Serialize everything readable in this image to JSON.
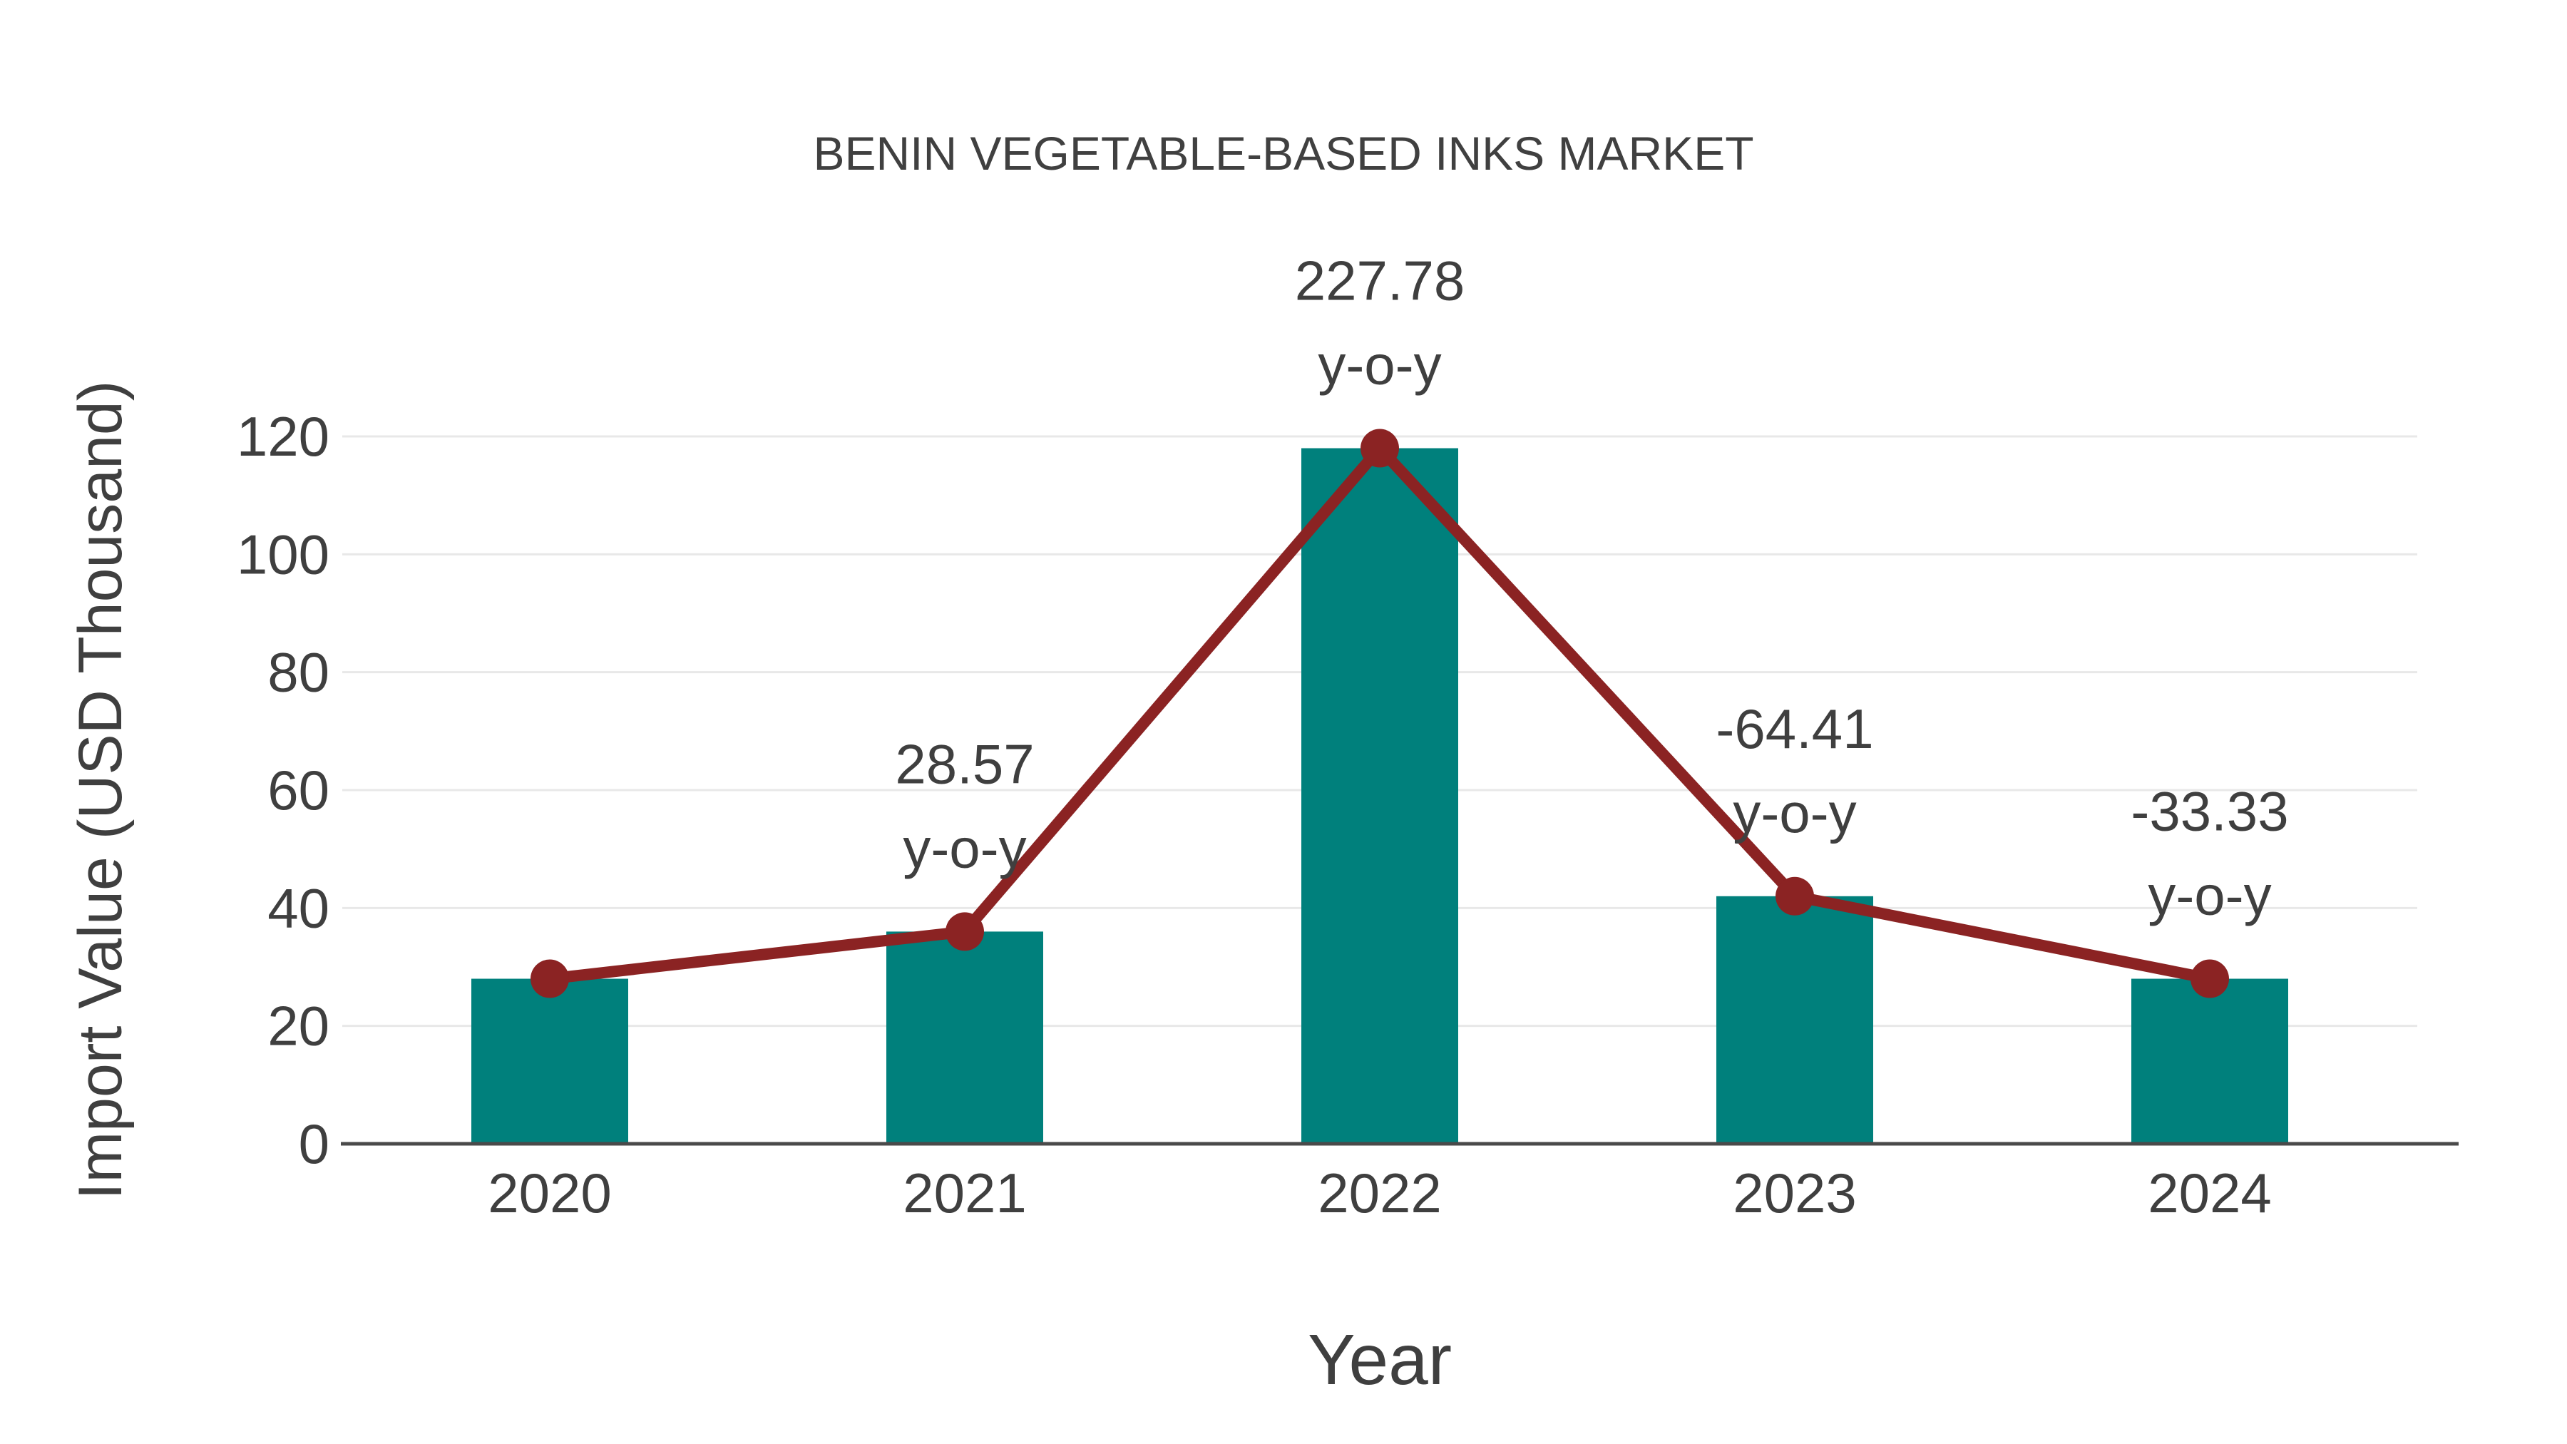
{
  "page": {
    "background": "#FFFFFF"
  },
  "chart_data": {
    "type": "bar",
    "title": "BENIN VEGETABLE-BASED INKS MARKET",
    "xlabel": "Year",
    "ylabel": "Import Value (USD Thousand)",
    "categories": [
      "2020",
      "2021",
      "2022",
      "2023",
      "2024"
    ],
    "series": [
      {
        "name": "Import Value (USD Thousand)",
        "type": "bar",
        "values": [
          28,
          36,
          118,
          42,
          28
        ],
        "color": "#00807C"
      },
      {
        "name": "y-o-y trend line",
        "type": "line",
        "values": [
          28,
          36,
          118,
          42,
          28
        ],
        "color": "#8B2323"
      }
    ],
    "annotations": [
      {
        "category": "2021",
        "value_text": "28.57",
        "suffix": "y-o-y"
      },
      {
        "category": "2022",
        "value_text": "227.78",
        "suffix": "y-o-y"
      },
      {
        "category": "2023",
        "value_text": "-64.41",
        "suffix": "y-o-y"
      },
      {
        "category": "2024",
        "value_text": "-33.33",
        "suffix": "y-o-y"
      }
    ],
    "yticks": [
      0,
      20,
      40,
      60,
      80,
      100,
      120
    ],
    "ylim": [
      0,
      130
    ],
    "grid": "horizontal",
    "legend": "none",
    "colors": {
      "bar": "#00807C",
      "line": "#8B2323",
      "marker": "#8B2323",
      "text": "#3F3F3F",
      "grid": "#E8E8E8",
      "axis": "#4A4A4A"
    }
  }
}
